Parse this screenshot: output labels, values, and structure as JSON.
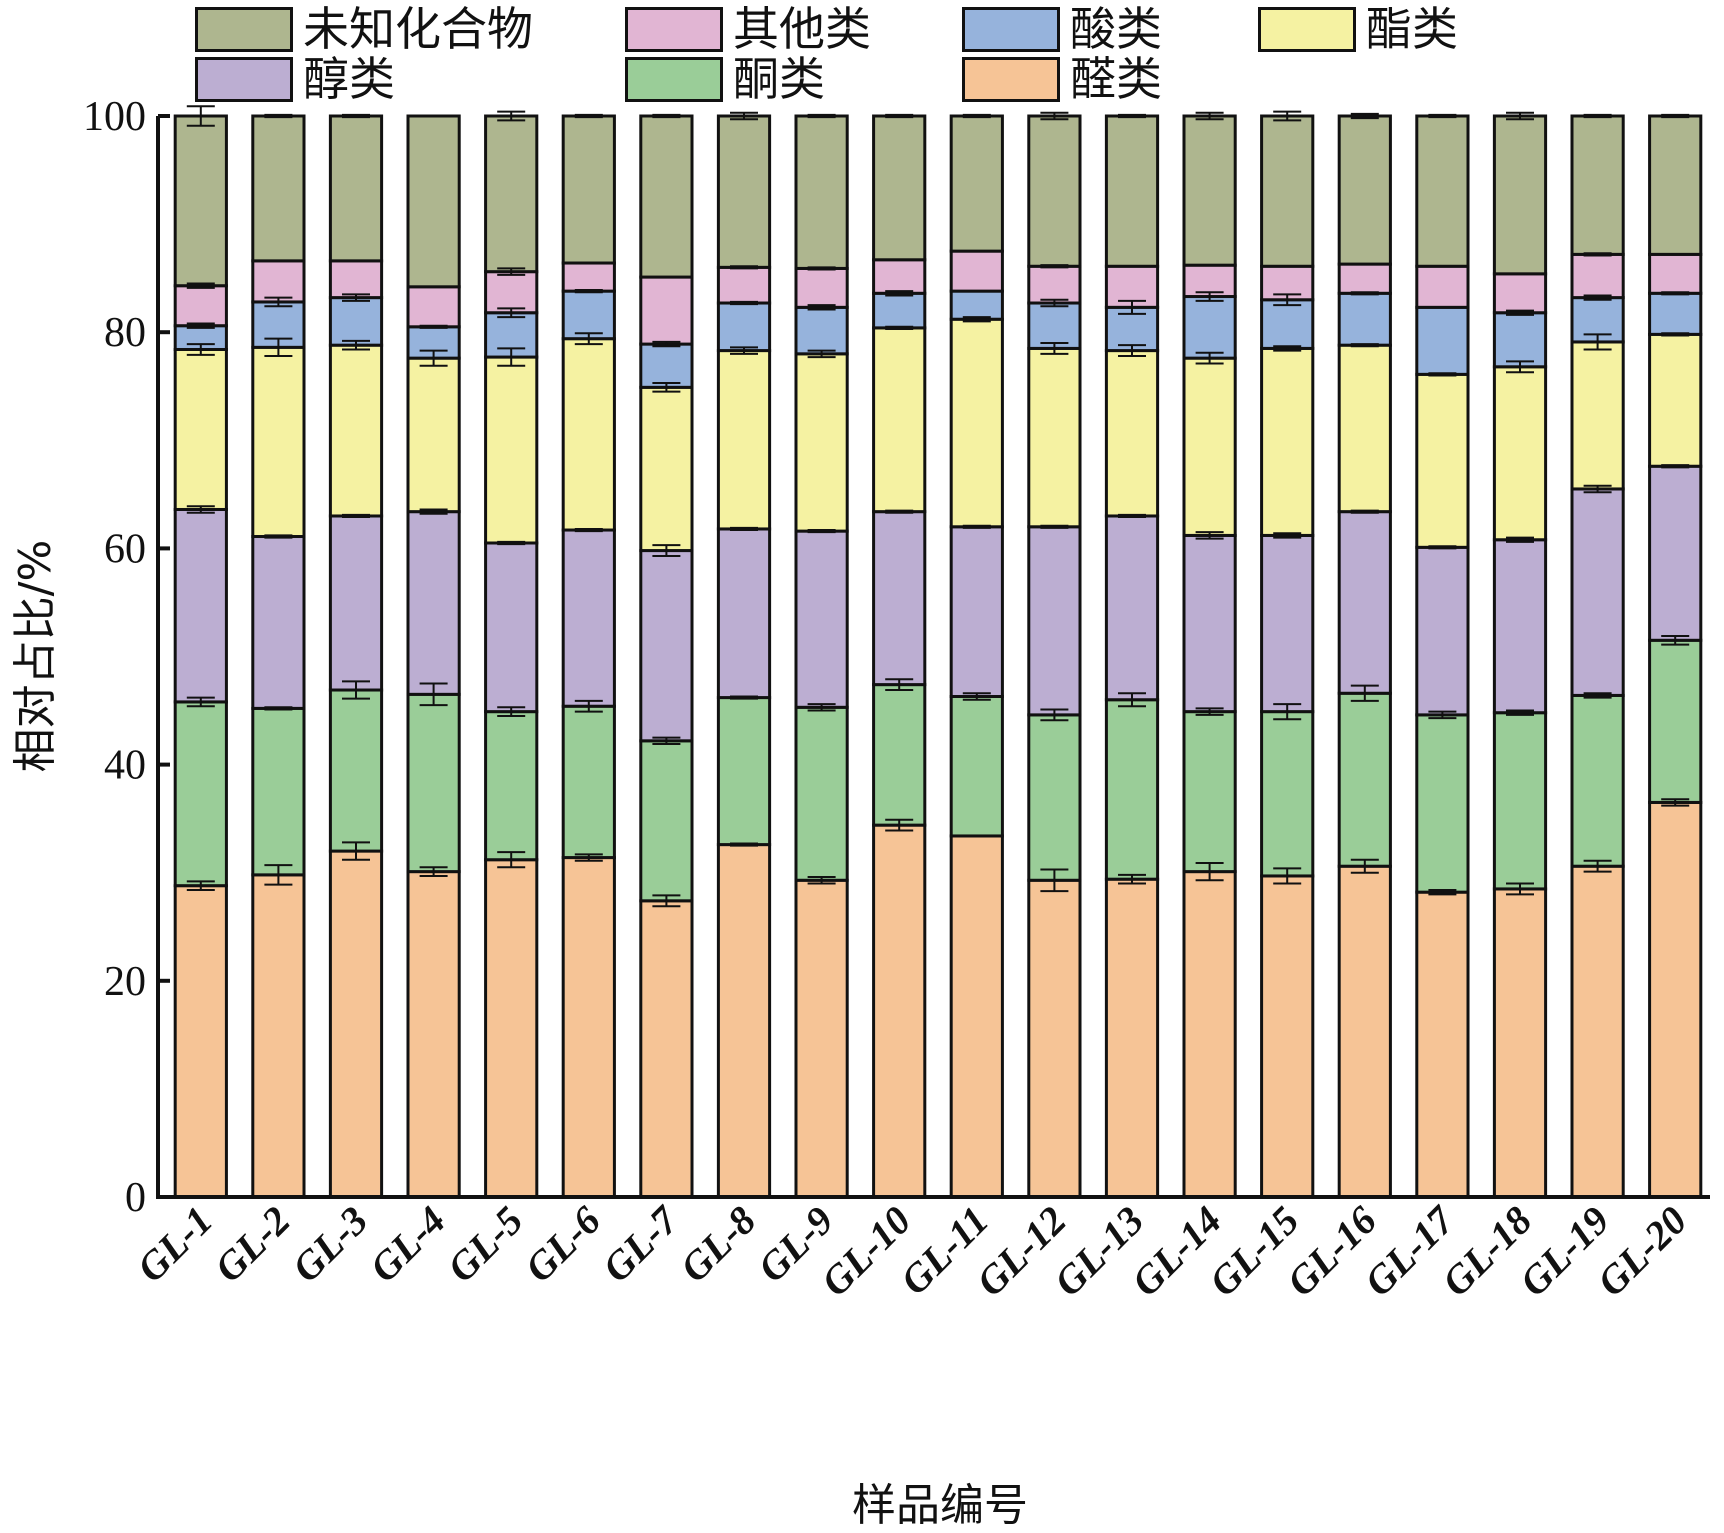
{
  "chart_data": {
    "type": "bar",
    "stacked": true,
    "title": "",
    "xlabel": "样品编号",
    "ylabel": "相对占比/%",
    "ylim": [
      0,
      100
    ],
    "yticks": [
      "0",
      "20",
      "40",
      "60",
      "80",
      "100"
    ],
    "grid": false,
    "legend_position": "top",
    "categories": [
      "GL-1",
      "GL-2",
      "GL-3",
      "GL-4",
      "GL-5",
      "GL-6",
      "GL-7",
      "GL-8",
      "GL-9",
      "GL-10",
      "GL-11",
      "GL-12",
      "GL-13",
      "GL-14",
      "GL-15",
      "GL-16",
      "GL-17",
      "GL-18",
      "GL-19",
      "GL-20"
    ],
    "series": [
      {
        "name": "醛类",
        "color": "#f6c496",
        "values": [
          28.8,
          29.8,
          32.0,
          30.1,
          31.2,
          31.4,
          27.4,
          32.6,
          29.3,
          34.4,
          33.4,
          29.3,
          29.4,
          30.1,
          29.7,
          30.6,
          28.2,
          28.5,
          30.6,
          36.5
        ],
        "errors": [
          0.4,
          0.9,
          0.8,
          0.4,
          0.7,
          0.3,
          0.5,
          0.1,
          0.3,
          0.5,
          0.0,
          1.0,
          0.4,
          0.8,
          0.7,
          0.6,
          0.2,
          0.5,
          0.5,
          0.3
        ]
      },
      {
        "name": "酮类",
        "color": "#9acd98",
        "values": [
          17.0,
          15.4,
          14.9,
          16.4,
          13.7,
          14.0,
          14.8,
          13.6,
          16.0,
          13.0,
          12.9,
          15.3,
          16.6,
          14.8,
          15.2,
          16.0,
          16.4,
          16.3,
          15.8,
          15.0
        ],
        "errors": [
          0.4,
          0.1,
          0.8,
          1.0,
          0.4,
          0.5,
          0.3,
          0.1,
          0.3,
          0.5,
          0.3,
          0.5,
          0.6,
          0.3,
          0.7,
          0.7,
          0.3,
          0.2,
          0.2,
          0.4
        ]
      },
      {
        "name": "醇类",
        "color": "#bcaed2",
        "values": [
          17.8,
          15.9,
          16.1,
          16.9,
          15.6,
          16.3,
          17.6,
          15.6,
          16.3,
          16.0,
          15.7,
          17.4,
          17.0,
          16.3,
          16.3,
          16.8,
          15.5,
          16.0,
          19.1,
          16.1
        ],
        "errors": [
          0.3,
          0.1,
          0.1,
          0.2,
          0.1,
          0.1,
          0.5,
          0.1,
          0.1,
          0.1,
          0.1,
          0.1,
          0.1,
          0.3,
          0.2,
          0.1,
          0.1,
          0.2,
          0.3,
          0.1
        ]
      },
      {
        "name": "酯类",
        "color": "#f5f2a2",
        "values": [
          14.8,
          17.5,
          15.8,
          14.2,
          17.2,
          17.7,
          15.1,
          16.5,
          16.4,
          17.0,
          19.2,
          16.5,
          15.3,
          16.4,
          17.3,
          15.4,
          16.0,
          16.0,
          13.6,
          12.2
        ],
        "errors": [
          0.5,
          0.8,
          0.4,
          0.7,
          0.8,
          0.5,
          0.4,
          0.3,
          0.3,
          0.1,
          0.2,
          0.5,
          0.5,
          0.5,
          0.2,
          0.1,
          0.1,
          0.5,
          0.7,
          0.1
        ]
      },
      {
        "name": "酸类",
        "color": "#96b3dc",
        "values": [
          2.2,
          4.2,
          4.4,
          2.9,
          4.1,
          4.4,
          4.0,
          4.4,
          4.3,
          3.2,
          2.6,
          4.2,
          4.0,
          5.7,
          4.5,
          4.8,
          6.2,
          5.0,
          4.1,
          3.8
        ],
        "errors": [
          0.2,
          0.4,
          0.3,
          0.1,
          0.4,
          0.1,
          0.2,
          0.1,
          0.2,
          0.2,
          0.0,
          0.3,
          0.6,
          0.4,
          0.5,
          0.1,
          0.0,
          0.2,
          0.2,
          0.1
        ]
      },
      {
        "name": "其他类",
        "color": "#e1b5d3",
        "values": [
          3.7,
          3.8,
          3.4,
          3.7,
          3.8,
          2.6,
          6.2,
          3.3,
          3.6,
          3.1,
          3.7,
          3.4,
          3.8,
          2.9,
          3.1,
          2.7,
          3.8,
          3.6,
          4.0,
          3.6
        ],
        "errors": [
          0.2,
          0.0,
          0.0,
          0.0,
          0.3,
          0.0,
          0.0,
          0.1,
          0.1,
          0.0,
          0.0,
          0.1,
          0.0,
          0.0,
          0.0,
          0.0,
          0.0,
          0.0,
          0.1,
          0.0
        ]
      },
      {
        "name": "未知化合物",
        "color": "#aeb68f",
        "values": [
          15.7,
          13.4,
          13.4,
          15.8,
          14.4,
          13.6,
          14.9,
          14.0,
          14.1,
          13.3,
          12.5,
          13.9,
          13.9,
          13.8,
          13.9,
          13.7,
          13.9,
          14.6,
          12.8,
          12.8
        ],
        "errors": [
          0.9,
          0.1,
          0.1,
          0.0,
          0.4,
          0.1,
          0.1,
          0.3,
          0.1,
          0.1,
          0.1,
          0.3,
          0.1,
          0.3,
          0.4,
          0.2,
          0.1,
          0.3,
          0.1,
          0.1
        ]
      }
    ]
  },
  "legend": {
    "items": [
      {
        "label": "未知化合物",
        "color": "#aeb68f"
      },
      {
        "label": "其他类",
        "color": "#e1b5d3"
      },
      {
        "label": "酸类",
        "color": "#96b3dc"
      },
      {
        "label": "酯类",
        "color": "#f5f2a2"
      },
      {
        "label": "醇类",
        "color": "#bcaed2"
      },
      {
        "label": "酮类",
        "color": "#9acd98"
      },
      {
        "label": "醛类",
        "color": "#f6c496"
      }
    ]
  }
}
